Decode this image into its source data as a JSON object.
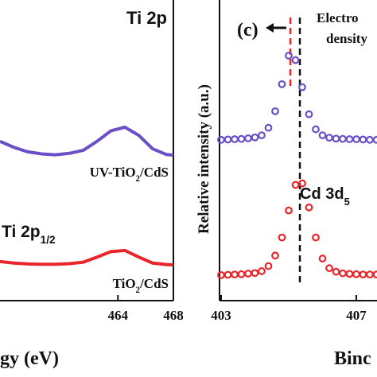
{
  "chart_data": [
    {
      "type": "line",
      "xlabel": "gy (eV)",
      "annotations": [
        [
          "Ti 2p"
        ],
        [
          "UV-TiO",
          "2",
          "/CdS"
        ],
        [
          "Ti 2p",
          "1/2"
        ],
        [
          "TiO",
          "2",
          "/CdS"
        ]
      ],
      "xlim": [
        455.5,
        468
      ],
      "xticks": [
        464,
        468
      ],
      "ylim": [
        0,
        100
      ],
      "x": [
        455.5,
        456.5,
        457.5,
        458.5,
        459.5,
        460.5,
        461.5,
        462.5,
        463.5,
        464.5,
        465.5,
        466.5,
        467.5,
        468
      ],
      "series": [
        {
          "color": "#6a4fc8",
          "values": [
            53,
            51,
            49.5,
            48.8,
            48.5,
            49,
            50,
            53,
            56.5,
            57.7,
            55,
            50.5,
            48.6,
            48.4
          ]
        },
        {
          "color": "#e8252a",
          "values": [
            13,
            12.5,
            12.2,
            12.1,
            12.1,
            12.3,
            12.8,
            14.5,
            16.3,
            16.7,
            14.5,
            12.5,
            12,
            11.9
          ]
        }
      ]
    },
    {
      "type": "scatter",
      "xlabel": "Binc",
      "ylabel": "Relative intensity (a.u.)",
      "annotations": [
        [
          "(c)"
        ],
        [
          "Electro"
        ],
        [
          "density"
        ],
        [
          "Cd 3d",
          "5"
        ]
      ],
      "xlim": [
        403,
        407.6
      ],
      "xticks": [
        403,
        407
      ],
      "ylim": [
        0,
        100
      ],
      "vlines": [
        {
          "x": 405.33,
          "color": "#111111"
        },
        {
          "x": 405.05,
          "color": "#e8252a"
        }
      ],
      "x": [
        403,
        403.2,
        403.4,
        403.6,
        403.8,
        404,
        404.2,
        404.4,
        404.6,
        404.8,
        405,
        405.2,
        405.4,
        405.6,
        405.8,
        406,
        406.2,
        406.4,
        406.6,
        406.8,
        407,
        407.2,
        407.4,
        407.6
      ],
      "series": [
        {
          "color": "#6a4fc8",
          "values": [
            53.5,
            53.6,
            53.7,
            53.8,
            54,
            54.3,
            55,
            57.5,
            63,
            72,
            81.5,
            80,
            71,
            62,
            57,
            55,
            54.2,
            53.9,
            53.8,
            53.7,
            53.7,
            53.6,
            53.5,
            53.5
          ]
        },
        {
          "color": "#e8252a",
          "values": [
            8.5,
            8.6,
            8.7,
            8.8,
            9,
            9.2,
            9.8,
            11.5,
            15,
            21,
            30,
            38.5,
            39,
            31,
            21,
            14,
            10.8,
            9.6,
            9.1,
            8.9,
            8.8,
            8.7,
            8.7,
            8.7
          ]
        }
      ]
    }
  ]
}
